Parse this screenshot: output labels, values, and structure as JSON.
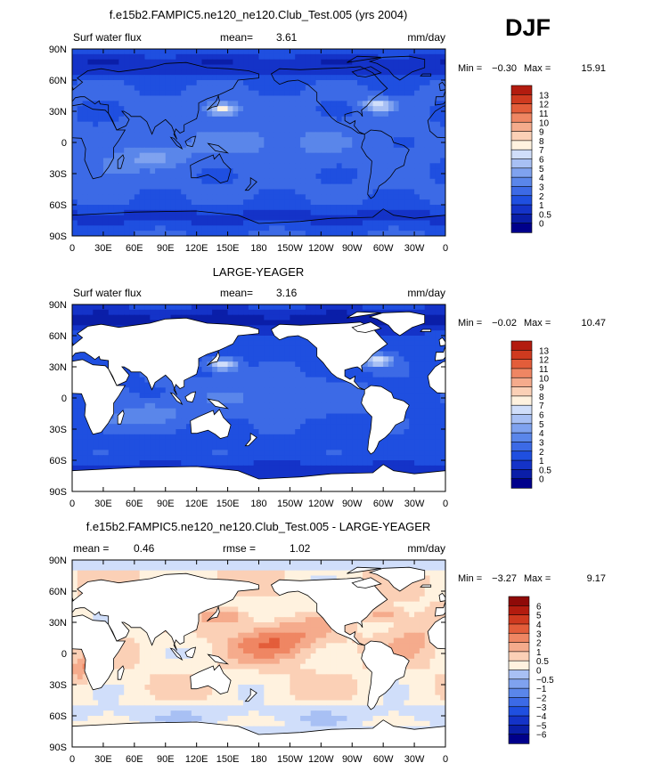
{
  "season": "DJF",
  "colors": {
    "ocean_seq": [
      "#00008b",
      "#0a1ea8",
      "#1433c8",
      "#1f4fe0",
      "#3c6ae6",
      "#5a86ea",
      "#7fa2ef",
      "#a8c0f4",
      "#d0defa",
      "#fff2df",
      "#fbd0b6",
      "#f5ab8c",
      "#ef8663",
      "#e35d3a",
      "#cf3a1f",
      "#b31c0f",
      "#8f0a08"
    ],
    "diff_seq": [
      "#00008b",
      "#0a1ea8",
      "#1433c8",
      "#1f4fe0",
      "#3c6ae6",
      "#5a86ea",
      "#7fa2ef",
      "#a8c0f4",
      "#d0defa",
      "#fff2df",
      "#fbd0b6",
      "#f5ab8c",
      "#ef8663",
      "#e35d3a",
      "#cf3a1f",
      "#b31c0f",
      "#8f0a08"
    ],
    "land": "#ffffff",
    "coast": "#000000"
  },
  "axis": {
    "lat_ticks": [
      "90N",
      "60N",
      "30N",
      "0",
      "30S",
      "60S",
      "90S"
    ],
    "lon_ticks": [
      "0",
      "30E",
      "60E",
      "90E",
      "120E",
      "150E",
      "180",
      "150W",
      "120W",
      "90W",
      "60W",
      "30W",
      "0"
    ]
  },
  "chart_data": [
    {
      "type": "heatmap",
      "title": "f.e15b2.FAMPIC5.ne120_ne120.Club_Test.005 (yrs 2004)",
      "left_label": "Surf water flux",
      "stat_label": "mean=",
      "stat_value": "3.61",
      "units": "mm/day",
      "min_label": "Min =",
      "min_value": "−0.30",
      "max_label": "Max =",
      "max_value": "15.91",
      "colorbar_labels": [
        "13",
        "12",
        "11",
        "10",
        "9",
        "8",
        "7",
        "6",
        "5",
        "4",
        "3",
        "2",
        "1",
        "0.5",
        "0"
      ],
      "land_masked": false,
      "field": "model"
    },
    {
      "type": "heatmap",
      "title": "LARGE-YEAGER",
      "left_label": "Surf water flux",
      "stat_label": "mean=",
      "stat_value": "3.16",
      "units": "mm/day",
      "min_label": "Min =",
      "min_value": "−0.02",
      "max_label": "Max =",
      "max_value": "10.47",
      "colorbar_labels": [
        "13",
        "12",
        "11",
        "10",
        "9",
        "8",
        "7",
        "6",
        "5",
        "4",
        "3",
        "2",
        "1",
        "0.5",
        "0"
      ],
      "land_masked": true,
      "field": "obs"
    },
    {
      "type": "heatmap",
      "title": "f.e15b2.FAMPIC5.ne120_ne120.Club_Test.005 - LARGE-YEAGER",
      "left_label": "mean =",
      "left_value": "0.46",
      "stat_label": "rmse =",
      "stat_value": "1.02",
      "units": "mm/day",
      "min_label": "Min =",
      "min_value": "−3.27",
      "max_label": "Max =",
      "max_value": "9.17",
      "colorbar_labels": [
        "6",
        "5",
        "4",
        "3",
        "2",
        "1",
        "0.5",
        "0",
        "−0.5",
        "−1",
        "−2",
        "−3",
        "−4",
        "−5",
        "−6"
      ],
      "land_masked": true,
      "field": "diff"
    }
  ]
}
